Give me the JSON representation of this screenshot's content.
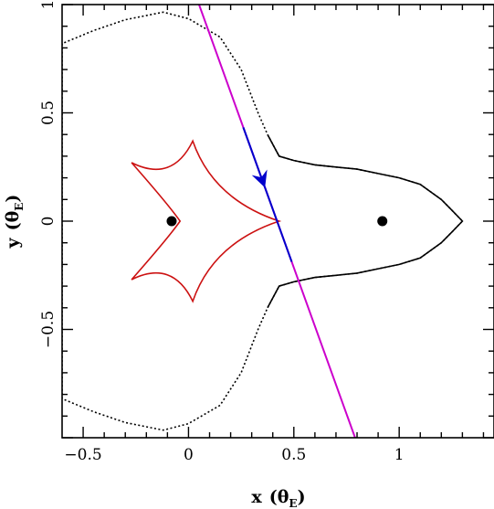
{
  "chart_data": {
    "type": "line",
    "title": "",
    "xlabel": "x (θE)",
    "ylabel": "y (θE)",
    "xlim": [
      -0.6,
      1.45
    ],
    "ylim": [
      -1.0,
      1.0
    ],
    "x_ticks": [
      {
        "value": -0.5,
        "label": "−0.5"
      },
      {
        "value": 0,
        "label": "0"
      },
      {
        "value": 0.5,
        "label": "0.5"
      },
      {
        "value": 1,
        "label": "1"
      }
    ],
    "y_ticks": [
      {
        "value": -0.5,
        "label": "−0.5"
      },
      {
        "value": 0,
        "label": "0"
      },
      {
        "value": 0.5,
        "label": "0.5"
      },
      {
        "value": 1,
        "label": "1"
      }
    ],
    "grid": false,
    "lenses": [
      {
        "x": -0.08,
        "y": 0.0
      },
      {
        "x": 0.92,
        "y": 0.0
      }
    ],
    "critical_curve": {
      "color": "#000000",
      "style": "dotted-solid",
      "points": [
        [
          0.375,
          0.4
        ],
        [
          0.43,
          0.3
        ],
        [
          0.5,
          0.28
        ],
        [
          0.6,
          0.26
        ],
        [
          0.7,
          0.25
        ],
        [
          0.8,
          0.24
        ],
        [
          0.9,
          0.22
        ],
        [
          1.0,
          0.2
        ],
        [
          1.1,
          0.17
        ],
        [
          1.2,
          0.1
        ],
        [
          1.25,
          0.05
        ],
        [
          1.3,
          0.0
        ],
        [
          1.25,
          -0.05
        ],
        [
          1.2,
          -0.1
        ],
        [
          1.1,
          -0.17
        ],
        [
          1.0,
          -0.2
        ],
        [
          0.9,
          -0.22
        ],
        [
          0.8,
          -0.24
        ],
        [
          0.7,
          -0.25
        ],
        [
          0.6,
          -0.26
        ],
        [
          0.5,
          -0.28
        ],
        [
          0.43,
          -0.3
        ],
        [
          0.375,
          -0.4
        ],
        [
          0.33,
          -0.5
        ],
        [
          0.25,
          -0.7
        ],
        [
          0.15,
          -0.85
        ],
        [
          0.0,
          -0.935
        ],
        [
          -0.12,
          -0.965
        ],
        [
          -0.3,
          -0.93
        ],
        [
          -0.45,
          -0.88
        ],
        [
          -0.6,
          -0.82
        ],
        [
          -0.6,
          0.82
        ],
        [
          -0.45,
          0.88
        ],
        [
          -0.3,
          0.93
        ],
        [
          -0.12,
          0.965
        ],
        [
          0.0,
          0.935
        ],
        [
          0.15,
          0.85
        ],
        [
          0.25,
          0.7
        ],
        [
          0.33,
          0.5
        ],
        [
          0.375,
          0.4
        ]
      ]
    },
    "caustic": {
      "color": "#cc1111",
      "cusps": [
        [
          0.43,
          0.0
        ],
        [
          0.02,
          0.37
        ],
        [
          -0.27,
          0.27
        ],
        [
          -0.04,
          0.0
        ],
        [
          -0.27,
          -0.27
        ],
        [
          0.02,
          -0.37
        ]
      ]
    },
    "source_trajectory": {
      "color": "#cc00cc",
      "highlight_color": "#0000cc",
      "x_range": [
        0.05,
        0.8
      ],
      "slope": -2.7,
      "intercept": 1.135,
      "highlight_x_range": [
        0.26,
        0.49
      ],
      "arrow_x": 0.35
    }
  }
}
